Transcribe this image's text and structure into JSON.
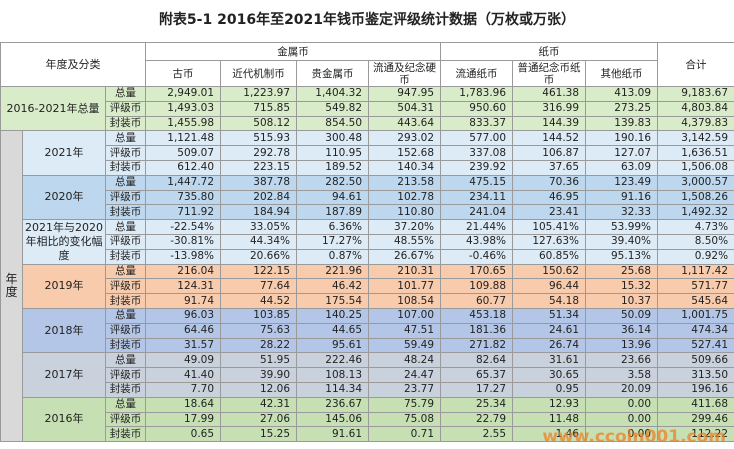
{
  "title": "附表5-1  2016年至2021年钱币鉴定评级统计数据（万枚或万张）",
  "header": {
    "corner": "年度及分类",
    "groups": [
      {
        "label": "金属币",
        "columns": [
          "古币",
          "近代机制币",
          "贵金属币",
          "流通及纪念硬币"
        ]
      },
      {
        "label": "纸币",
        "columns": [
          "流通纸币",
          "普通纪念币纸币",
          "其他纸币"
        ]
      }
    ],
    "total": "合计"
  },
  "summary": {
    "label": "2016-2021年总量",
    "rows": [
      {
        "label": "总量",
        "values": [
          "2,949.01",
          "1,223.97",
          "1,404.32",
          "947.95",
          "1,783.96",
          "461.38",
          "413.09",
          "9,183.67"
        ]
      },
      {
        "label": "评级币",
        "values": [
          "1,493.03",
          "715.85",
          "549.82",
          "504.31",
          "950.60",
          "316.99",
          "273.25",
          "4,803.84"
        ]
      },
      {
        "label": "封装币",
        "values": [
          "1,455.98",
          "508.12",
          "854.50",
          "443.64",
          "833.37",
          "144.39",
          "139.83",
          "4,379.83"
        ]
      }
    ]
  },
  "year_group_label": "年度",
  "years": [
    {
      "label": "2021年",
      "rows": [
        {
          "label": "总量",
          "values": [
            "1,121.48",
            "515.93",
            "300.48",
            "293.02",
            "577.00",
            "144.52",
            "190.16",
            "3,142.59"
          ]
        },
        {
          "label": "评级币",
          "values": [
            "509.07",
            "292.78",
            "110.95",
            "152.68",
            "337.08",
            "106.87",
            "127.07",
            "1,636.51"
          ]
        },
        {
          "label": "封装币",
          "values": [
            "612.40",
            "223.15",
            "189.52",
            "140.34",
            "239.92",
            "37.65",
            "63.09",
            "1,506.08"
          ]
        }
      ]
    },
    {
      "label": "2020年",
      "rows": [
        {
          "label": "总量",
          "values": [
            "1,447.72",
            "387.78",
            "282.50",
            "213.58",
            "475.15",
            "70.36",
            "123.49",
            "3,000.57"
          ]
        },
        {
          "label": "评级币",
          "values": [
            "735.80",
            "202.84",
            "94.61",
            "102.78",
            "234.11",
            "46.95",
            "91.16",
            "1,508.26"
          ]
        },
        {
          "label": "封装币",
          "values": [
            "711.92",
            "184.94",
            "187.89",
            "110.80",
            "241.04",
            "23.41",
            "32.33",
            "1,492.32"
          ]
        }
      ]
    },
    {
      "label": "2021年与2020年相比的变化幅度",
      "rows": [
        {
          "label": "总量",
          "values": [
            "-22.54%",
            "33.05%",
            "6.36%",
            "37.20%",
            "21.44%",
            "105.41%",
            "53.99%",
            "4.73%"
          ]
        },
        {
          "label": "评级币",
          "values": [
            "-30.81%",
            "44.34%",
            "17.27%",
            "48.55%",
            "43.98%",
            "127.63%",
            "39.40%",
            "8.50%"
          ]
        },
        {
          "label": "封装币",
          "values": [
            "-13.98%",
            "20.66%",
            "0.87%",
            "26.67%",
            "-0.46%",
            "60.85%",
            "95.13%",
            "0.92%"
          ]
        }
      ]
    },
    {
      "label": "2019年",
      "rows": [
        {
          "label": "总量",
          "values": [
            "216.04",
            "122.15",
            "221.96",
            "210.31",
            "170.65",
            "150.62",
            "25.68",
            "1,117.42"
          ]
        },
        {
          "label": "评级币",
          "values": [
            "124.31",
            "77.64",
            "46.42",
            "101.77",
            "109.88",
            "96.44",
            "15.32",
            "571.77"
          ]
        },
        {
          "label": "封装币",
          "values": [
            "91.74",
            "44.52",
            "175.54",
            "108.54",
            "60.77",
            "54.18",
            "10.37",
            "545.64"
          ]
        }
      ]
    },
    {
      "label": "2018年",
      "rows": [
        {
          "label": "总量",
          "values": [
            "96.03",
            "103.85",
            "140.25",
            "107.00",
            "453.18",
            "51.34",
            "50.09",
            "1,001.75"
          ]
        },
        {
          "label": "评级币",
          "values": [
            "64.46",
            "75.63",
            "44.65",
            "47.51",
            "181.36",
            "24.61",
            "36.14",
            "474.34"
          ]
        },
        {
          "label": "封装币",
          "values": [
            "31.57",
            "28.22",
            "95.61",
            "59.49",
            "271.82",
            "26.74",
            "13.96",
            "527.41"
          ]
        }
      ]
    },
    {
      "label": "2017年",
      "rows": [
        {
          "label": "总量",
          "values": [
            "49.09",
            "51.95",
            "222.46",
            "48.24",
            "82.64",
            "31.61",
            "23.66",
            "509.66"
          ]
        },
        {
          "label": "评级币",
          "values": [
            "41.40",
            "39.90",
            "108.13",
            "24.47",
            "65.37",
            "30.65",
            "3.58",
            "313.50"
          ]
        },
        {
          "label": "封装币",
          "values": [
            "7.70",
            "12.06",
            "114.34",
            "23.77",
            "17.27",
            "0.95",
            "20.09",
            "196.16"
          ]
        }
      ]
    },
    {
      "label": "2016年",
      "rows": [
        {
          "label": "总量",
          "values": [
            "18.64",
            "42.31",
            "236.67",
            "75.79",
            "25.34",
            "12.93",
            "0.00",
            "411.68"
          ]
        },
        {
          "label": "评级币",
          "values": [
            "17.99",
            "27.06",
            "145.06",
            "75.08",
            "22.79",
            "11.48",
            "0.00",
            "299.46"
          ]
        },
        {
          "label": "封装币",
          "values": [
            "0.65",
            "15.25",
            "91.61",
            "0.71",
            "2.55",
            "1.46",
            "0.00",
            "112.22"
          ]
        }
      ]
    }
  ],
  "watermark": "www.ccoin001.com"
}
